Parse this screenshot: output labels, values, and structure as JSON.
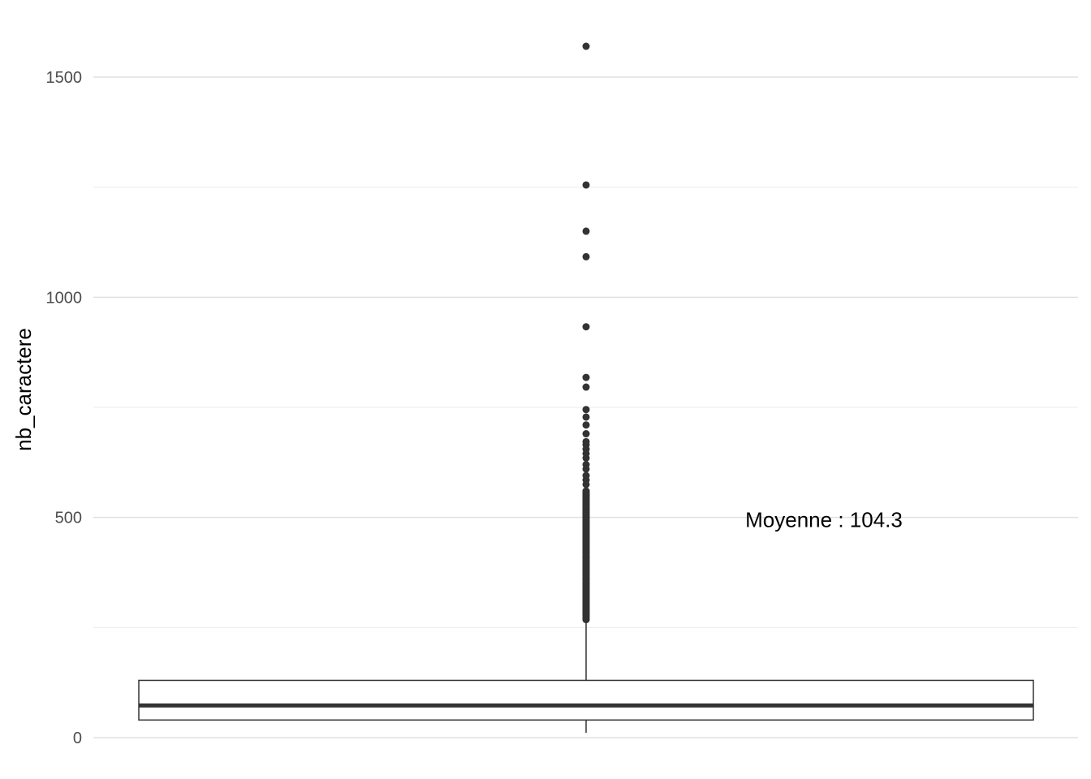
{
  "chart_data": {
    "type": "boxplot",
    "title": "",
    "xlabel": "",
    "ylabel": "nb_caractere",
    "ylim": [
      0,
      1500
    ],
    "yticks": [
      0,
      500,
      1000,
      1500
    ],
    "y_minor_gridlines": [
      250,
      750,
      1250
    ],
    "grid": true,
    "box": {
      "whisker_low": 0,
      "q1": 40,
      "median": 73,
      "q3": 130,
      "whisker_high": 265
    },
    "outliers": [
      1570,
      1255,
      1150,
      1092,
      933,
      818,
      796,
      745,
      728,
      710,
      690,
      672,
      665,
      655,
      645,
      635,
      620,
      610,
      595,
      585,
      575,
      560,
      550,
      540,
      530,
      520,
      510,
      500,
      490,
      480,
      470,
      460,
      450,
      440,
      430,
      420,
      410,
      400,
      390,
      380,
      370,
      360,
      350,
      340,
      330,
      320,
      310,
      300,
      290,
      280,
      270
    ],
    "annotation": {
      "text": "Moyenne : 104.3",
      "value": 500
    }
  }
}
